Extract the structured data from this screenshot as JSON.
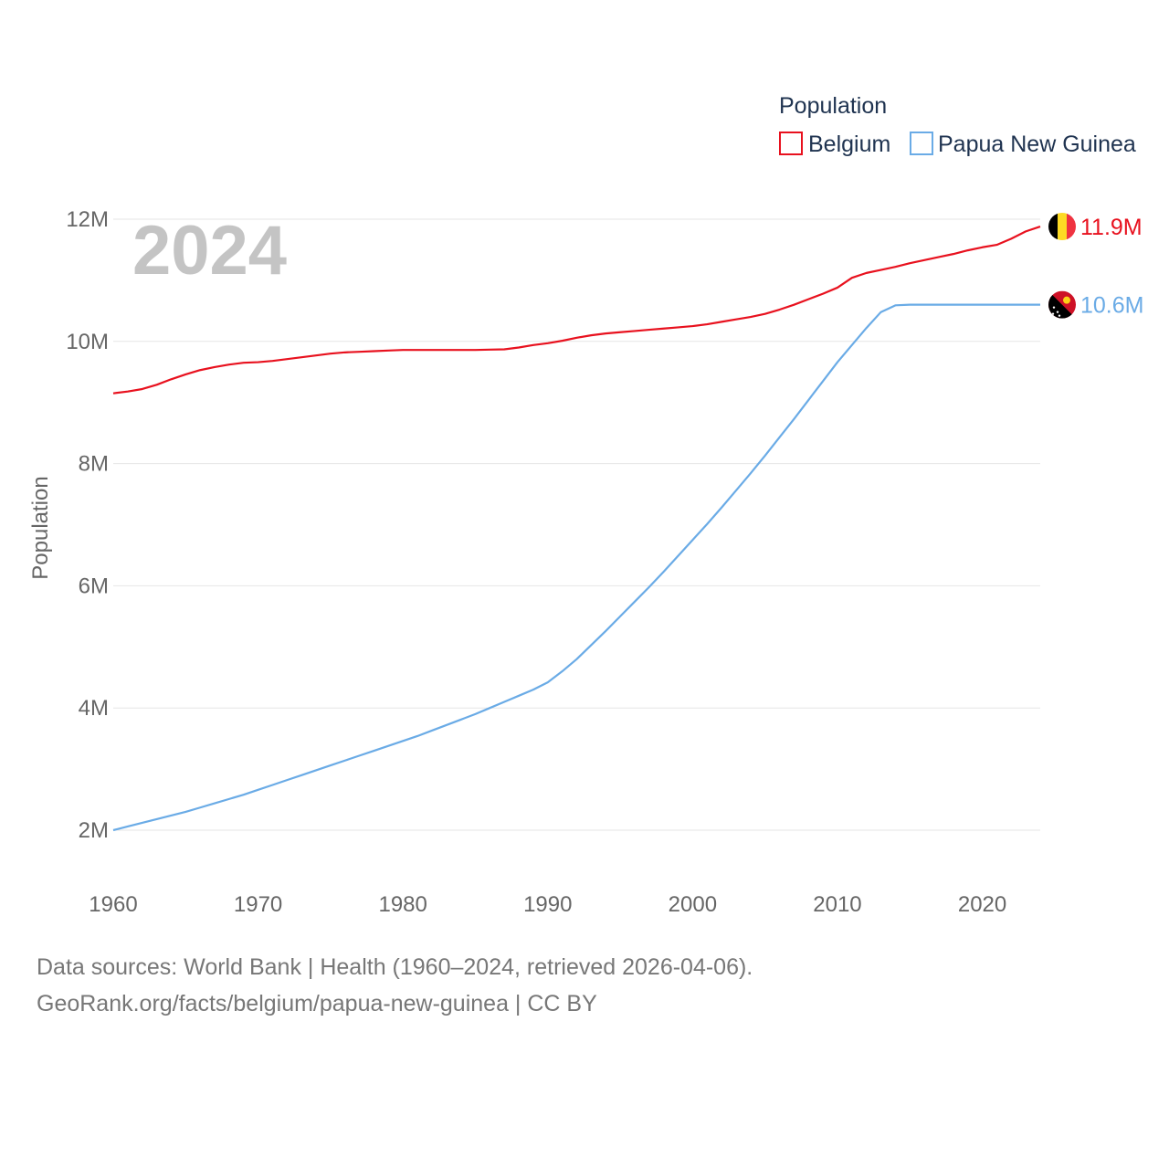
{
  "chart_data": {
    "type": "line",
    "title": "",
    "year_display": "2024",
    "xlabel": "",
    "ylabel": "Population",
    "xlim": [
      1960,
      2024
    ],
    "ylim": [
      2000000,
      12000000
    ],
    "x_ticks": [
      1960,
      1970,
      1980,
      1990,
      2000,
      2010,
      2020
    ],
    "x_tick_labels": [
      "1960",
      "1970",
      "1980",
      "1990",
      "2000",
      "2010",
      "2020"
    ],
    "y_ticks": [
      2000000,
      4000000,
      6000000,
      8000000,
      10000000,
      12000000
    ],
    "y_tick_labels": [
      "2M",
      "4M",
      "6M",
      "8M",
      "10M",
      "12M"
    ],
    "legend": {
      "title": "Population",
      "position": "top-right"
    },
    "x": [
      1960,
      1961,
      1962,
      1963,
      1964,
      1965,
      1966,
      1967,
      1968,
      1969,
      1970,
      1971,
      1972,
      1973,
      1974,
      1975,
      1976,
      1977,
      1978,
      1979,
      1980,
      1981,
      1982,
      1983,
      1984,
      1985,
      1986,
      1987,
      1988,
      1989,
      1990,
      1991,
      1992,
      1993,
      1994,
      1995,
      1996,
      1997,
      1998,
      1999,
      2000,
      2001,
      2002,
      2003,
      2004,
      2005,
      2006,
      2007,
      2008,
      2009,
      2010,
      2011,
      2012,
      2013,
      2014,
      2015,
      2016,
      2017,
      2018,
      2019,
      2020,
      2021,
      2022,
      2023,
      2024
    ],
    "series": [
      {
        "name": "Belgium",
        "color": "#e8111e",
        "end_label": "11.9M",
        "flag": "belgium-flag-icon",
        "values": [
          9150000,
          9180000,
          9220000,
          9290000,
          9380000,
          9460000,
          9530000,
          9580000,
          9620000,
          9650000,
          9660000,
          9680000,
          9710000,
          9740000,
          9770000,
          9800000,
          9820000,
          9830000,
          9840000,
          9850000,
          9860000,
          9860000,
          9860000,
          9860000,
          9860000,
          9860000,
          9865000,
          9870000,
          9900000,
          9940000,
          9970000,
          10010000,
          10060000,
          10100000,
          10130000,
          10150000,
          10170000,
          10190000,
          10210000,
          10230000,
          10250000,
          10280000,
          10320000,
          10360000,
          10400000,
          10450000,
          10520000,
          10600000,
          10690000,
          10780000,
          10880000,
          11040000,
          11120000,
          11170000,
          11220000,
          11280000,
          11330000,
          11380000,
          11430000,
          11490000,
          11540000,
          11580000,
          11680000,
          11800000,
          11880000
        ]
      },
      {
        "name": "Papua New Guinea",
        "color": "#6aabe6",
        "end_label": "10.6M",
        "flag": "papua-new-guinea-flag-icon",
        "values": [
          2000000,
          2060000,
          2120000,
          2180000,
          2240000,
          2300000,
          2370000,
          2440000,
          2510000,
          2580000,
          2660000,
          2740000,
          2820000,
          2900000,
          2980000,
          3060000,
          3140000,
          3220000,
          3300000,
          3380000,
          3460000,
          3540000,
          3630000,
          3720000,
          3810000,
          3900000,
          4000000,
          4100000,
          4200000,
          4300000,
          4420000,
          4600000,
          4800000,
          5030000,
          5260000,
          5500000,
          5740000,
          5980000,
          6230000,
          6490000,
          6750000,
          7010000,
          7280000,
          7560000,
          7840000,
          8130000,
          8430000,
          8730000,
          9040000,
          9350000,
          9660000,
          9940000,
          10220000,
          10480000,
          10590000,
          10600000,
          10600000,
          10600000,
          10600000,
          10600000,
          10600000,
          10600000,
          10600000,
          10600000,
          10600000
        ]
      }
    ]
  },
  "footer": {
    "line1": "Data sources: World Bank | Health (1960–2024, retrieved 2026-04-06).",
    "line2": "GeoRank.org/facts/belgium/papua-new-guinea | CC BY"
  }
}
